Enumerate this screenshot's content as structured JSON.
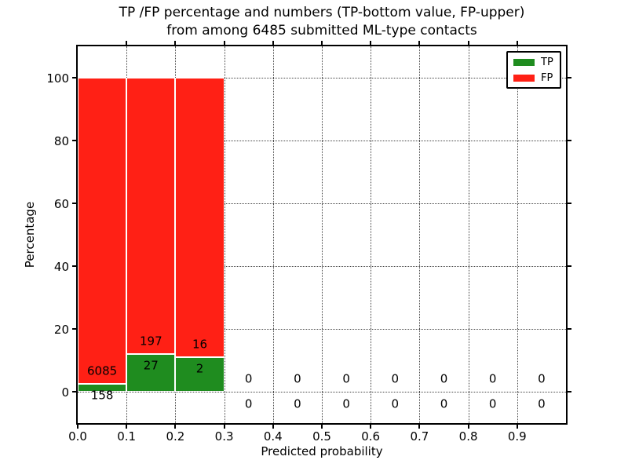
{
  "title": {
    "line1": "TP /FP percentage and numbers (TP-bottom value, FP-upper)",
    "line2": "from among 6485 submitted ML-type contacts"
  },
  "axes": {
    "xlabel": "Predicted probability",
    "ylabel": "Percentage",
    "xtick_labels": [
      "0.0",
      "0.1",
      "0.2",
      "0.3",
      "0.4",
      "0.5",
      "0.6",
      "0.7",
      "0.8",
      "0.9"
    ],
    "ytick_labels": [
      "0",
      "20",
      "40",
      "60",
      "80",
      "100"
    ]
  },
  "legend": {
    "items": [
      {
        "label": "TP",
        "color": "#1f8c1f"
      },
      {
        "label": "FP",
        "color": "#ff2015"
      }
    ]
  },
  "colors": {
    "tp_green": "#1f8c1f",
    "fp_red": "#ff2015",
    "bar_edge": "#ffffff",
    "grid": "#444444",
    "axis": "#000000",
    "background": "#ffffff"
  },
  "chart_data": {
    "type": "bar",
    "stacked": true,
    "title": "TP /FP percentage and numbers (TP-bottom value, FP-upper)\nfrom among 6485 submitted ML-type contacts",
    "total_contacts": 6485,
    "xlabel": "Predicted probability",
    "ylabel": "Percentage",
    "xlim": [
      0,
      1
    ],
    "ylim": [
      -10,
      110
    ],
    "xticks": [
      0.0,
      0.1,
      0.2,
      0.3,
      0.4,
      0.5,
      0.6,
      0.7,
      0.8,
      0.9
    ],
    "yticks": [
      0,
      20,
      40,
      60,
      80,
      100
    ],
    "grid": "dotted",
    "legend_position": "upper right",
    "percent_note": "bar heights are per-bin percentages, TP bottom + FP top = 100%",
    "series": [
      {
        "name": "TP",
        "color": "#1f8c1f",
        "counts": [
          158,
          27,
          2,
          0,
          0,
          0,
          0,
          0,
          0,
          0
        ]
      },
      {
        "name": "FP",
        "color": "#ff2015",
        "counts": [
          6085,
          197,
          16,
          0,
          0,
          0,
          0,
          0,
          0,
          0
        ]
      }
    ],
    "bins": [
      {
        "range": [
          0.0,
          0.1
        ],
        "tp": 158,
        "fp": 6085,
        "tp_pct": 2.5,
        "fp_pct": 97.5
      },
      {
        "range": [
          0.1,
          0.2
        ],
        "tp": 27,
        "fp": 197,
        "tp_pct": 12.1,
        "fp_pct": 87.9
      },
      {
        "range": [
          0.2,
          0.3
        ],
        "tp": 2,
        "fp": 16,
        "tp_pct": 11.1,
        "fp_pct": 88.9
      },
      {
        "range": [
          0.3,
          0.4
        ],
        "tp": 0,
        "fp": 0
      },
      {
        "range": [
          0.4,
          0.5
        ],
        "tp": 0,
        "fp": 0
      },
      {
        "range": [
          0.5,
          0.6
        ],
        "tp": 0,
        "fp": 0
      },
      {
        "range": [
          0.6,
          0.7
        ],
        "tp": 0,
        "fp": 0
      },
      {
        "range": [
          0.7,
          0.8
        ],
        "tp": 0,
        "fp": 0
      },
      {
        "range": [
          0.8,
          0.9
        ],
        "tp": 0,
        "fp": 0
      },
      {
        "range": [
          0.9,
          1.0
        ],
        "tp": 0,
        "fp": 0
      }
    ]
  }
}
